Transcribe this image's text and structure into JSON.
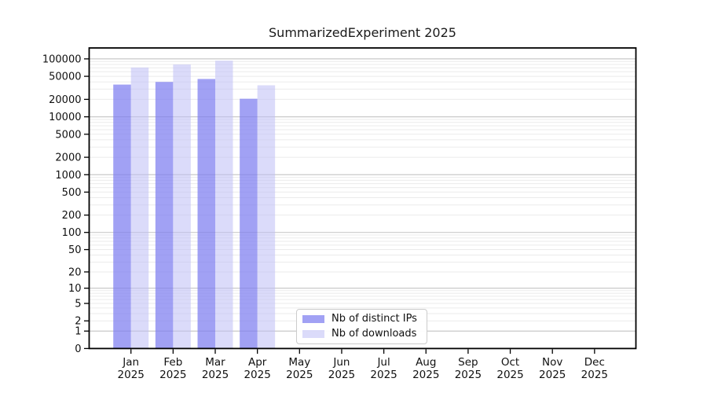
{
  "chart_data": {
    "type": "bar",
    "title": "SummarizedExperiment 2025",
    "categories": [
      "Jan",
      "Feb",
      "Mar",
      "Apr",
      "May",
      "Jun",
      "Jul",
      "Aug",
      "Sep",
      "Oct",
      "Nov",
      "Dec"
    ],
    "year": "2025",
    "series": [
      {
        "name": "Nb of distinct IPs",
        "color": "#7d7df0",
        "opacity": 0.72,
        "values": [
          36000,
          40000,
          45000,
          20500,
          0,
          0,
          0,
          0,
          0,
          0,
          0,
          0
        ]
      },
      {
        "name": "Nb of downloads",
        "color": "#bebef5",
        "opacity": 0.55,
        "values": [
          71000,
          80000,
          93000,
          35000,
          0,
          0,
          0,
          0,
          0,
          0,
          0,
          0
        ]
      }
    ],
    "xlabel": "",
    "ylabel": "",
    "y_axis": {
      "scale": "log10(value+1)",
      "ticks": [
        100000,
        50000,
        20000,
        10000,
        5000,
        2000,
        1000,
        500,
        200,
        100,
        50,
        20,
        10,
        5,
        2,
        1,
        0
      ],
      "range": [
        0,
        155000
      ]
    },
    "legend": {
      "position": "lower center"
    },
    "grid": {
      "on": true,
      "major_color": "#c9c9c9",
      "minor_color": "#ebebeb"
    },
    "frame_color": "#000000",
    "text_color": "#111111"
  }
}
